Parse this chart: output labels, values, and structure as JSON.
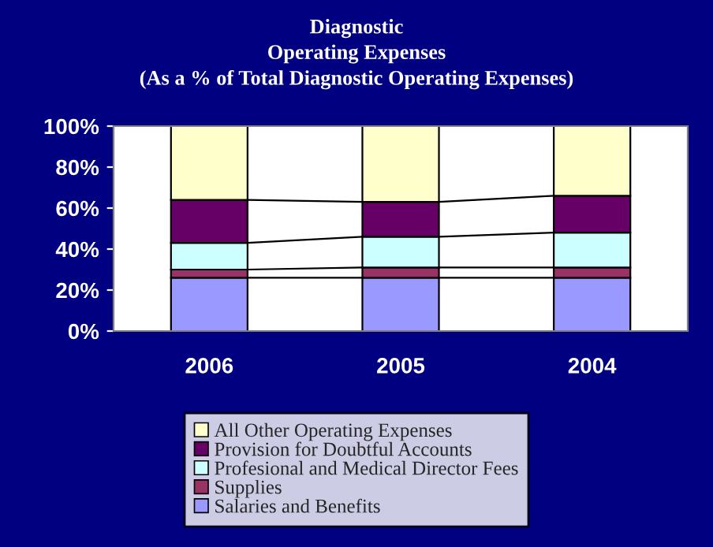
{
  "chart_data": {
    "type": "bar",
    "stacked": true,
    "title": "Diagnostic\nOperating Expenses\n(As a % of Total Diagnostic Operating Expenses)",
    "categories": [
      "2006",
      "2005",
      "2004"
    ],
    "series": [
      {
        "name": "Salaries and Benefits",
        "color": "#9999ff",
        "values": [
          26,
          26,
          26
        ]
      },
      {
        "name": "Supplies",
        "color": "#993366",
        "values": [
          4,
          5,
          5
        ]
      },
      {
        "name": "Profesional and Medical Director Fees",
        "color": "#ccffff",
        "values": [
          13,
          15,
          17
        ]
      },
      {
        "name": "Provision for Doubtful Accounts",
        "color": "#660066",
        "values": [
          21,
          17,
          18
        ]
      },
      {
        "name": "All Other Operating Expenses",
        "color": "#ffffcc",
        "values": [
          36,
          37,
          34
        ]
      }
    ],
    "ylim": [
      0,
      100
    ],
    "yticks": [
      {
        "value": 0,
        "label": "0%"
      },
      {
        "value": 20,
        "label": "20%"
      },
      {
        "value": 40,
        "label": "40%"
      },
      {
        "value": 60,
        "label": "60%"
      },
      {
        "value": 80,
        "label": "80%"
      },
      {
        "value": 100,
        "label": "100%"
      }
    ],
    "legend": "bottom",
    "grid": false
  }
}
